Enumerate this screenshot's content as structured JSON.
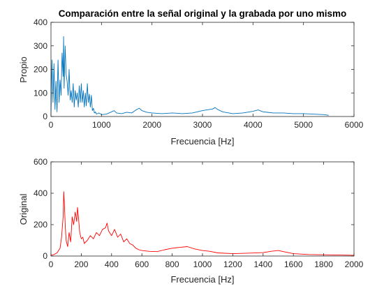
{
  "figure": {
    "background": "#ffffff"
  },
  "chart_data": [
    {
      "type": "line",
      "title": "Comparación entre la señal original y la grabada por uno mismo",
      "xlabel": "Frecuencia [Hz]",
      "ylabel": "Propio",
      "xlim": [
        0,
        6000
      ],
      "ylim": [
        0,
        400
      ],
      "xticks": [
        0,
        1000,
        2000,
        3000,
        4000,
        5000,
        6000
      ],
      "xtick_labels": [
        "0",
        "1000",
        "2000",
        "3000",
        "4000",
        "5000",
        "6000"
      ],
      "yticks": [
        0,
        100,
        200,
        300,
        400
      ],
      "ytick_labels": [
        "0",
        "100",
        "200",
        "300",
        "400"
      ],
      "color": "#0072BD",
      "grid": false,
      "series": [
        {
          "x": [
            0,
            20,
            40,
            60,
            80,
            100,
            120,
            140,
            160,
            180,
            200,
            220,
            240,
            250,
            260,
            280,
            300,
            320,
            340,
            360,
            380,
            400,
            420,
            440,
            460,
            480,
            500,
            520,
            540,
            560,
            580,
            600,
            620,
            640,
            660,
            680,
            700,
            720,
            740,
            760,
            780,
            800,
            820,
            840,
            860,
            880,
            900,
            950,
            1000,
            1100,
            1200,
            1250,
            1300,
            1400,
            1500,
            1600,
            1700,
            1750,
            1800,
            1900,
            2000,
            2200,
            2400,
            2600,
            2800,
            3000,
            3200,
            3250,
            3300,
            3400,
            3600,
            3800,
            4000,
            4100,
            4200,
            4400,
            4600,
            4800,
            5000,
            5200,
            5400,
            5500
          ],
          "y": [
            10,
            240,
            60,
            225,
            30,
            150,
            20,
            240,
            60,
            155,
            90,
            270,
            170,
            340,
            120,
            300,
            180,
            150,
            90,
            200,
            70,
            110,
            60,
            140,
            40,
            110,
            70,
            100,
            40,
            130,
            60,
            140,
            60,
            110,
            40,
            100,
            45,
            140,
            60,
            95,
            40,
            90,
            25,
            35,
            15,
            20,
            10,
            15,
            8,
            10,
            20,
            25,
            15,
            12,
            18,
            15,
            30,
            35,
            25,
            18,
            15,
            12,
            15,
            12,
            15,
            25,
            32,
            38,
            30,
            20,
            12,
            15,
            22,
            28,
            20,
            15,
            15,
            12,
            12,
            10,
            8,
            5
          ]
        }
      ]
    },
    {
      "type": "line",
      "title": "",
      "xlabel": "Frecuencia [Hz]",
      "ylabel": "Original",
      "xlim": [
        0,
        2000
      ],
      "ylim": [
        0,
        600
      ],
      "xticks": [
        0,
        200,
        400,
        600,
        800,
        1000,
        1200,
        1400,
        1600,
        1800,
        2000
      ],
      "xtick_labels": [
        "0",
        "200",
        "400",
        "600",
        "800",
        "1000",
        "1200",
        "1400",
        "1600",
        "1800",
        "2000"
      ],
      "yticks": [
        0,
        200,
        400,
        600
      ],
      "ytick_labels": [
        "0",
        "200",
        "400",
        "600"
      ],
      "color": "#FF0000",
      "grid": false,
      "series": [
        {
          "x": [
            0,
            20,
            40,
            60,
            70,
            80,
            85,
            90,
            95,
            100,
            110,
            120,
            130,
            140,
            150,
            160,
            170,
            175,
            180,
            190,
            200,
            210,
            220,
            240,
            260,
            280,
            300,
            320,
            340,
            360,
            370,
            380,
            400,
            420,
            440,
            460,
            480,
            500,
            520,
            540,
            560,
            580,
            600,
            650,
            700,
            750,
            800,
            850,
            900,
            950,
            1000,
            1050,
            1100,
            1200,
            1300,
            1400,
            1450,
            1500,
            1550,
            1600,
            1700,
            1800,
            1900,
            2000
          ],
          "y": [
            5,
            10,
            20,
            50,
            120,
            250,
            410,
            300,
            180,
            100,
            60,
            150,
            90,
            250,
            200,
            280,
            220,
            310,
            260,
            150,
            110,
            120,
            80,
            100,
            130,
            110,
            150,
            130,
            170,
            180,
            210,
            160,
            130,
            170,
            120,
            140,
            90,
            110,
            80,
            70,
            50,
            40,
            35,
            30,
            28,
            40,
            50,
            55,
            60,
            45,
            35,
            30,
            20,
            15,
            18,
            22,
            30,
            35,
            25,
            15,
            10,
            8,
            6,
            5
          ]
        }
      ]
    }
  ]
}
